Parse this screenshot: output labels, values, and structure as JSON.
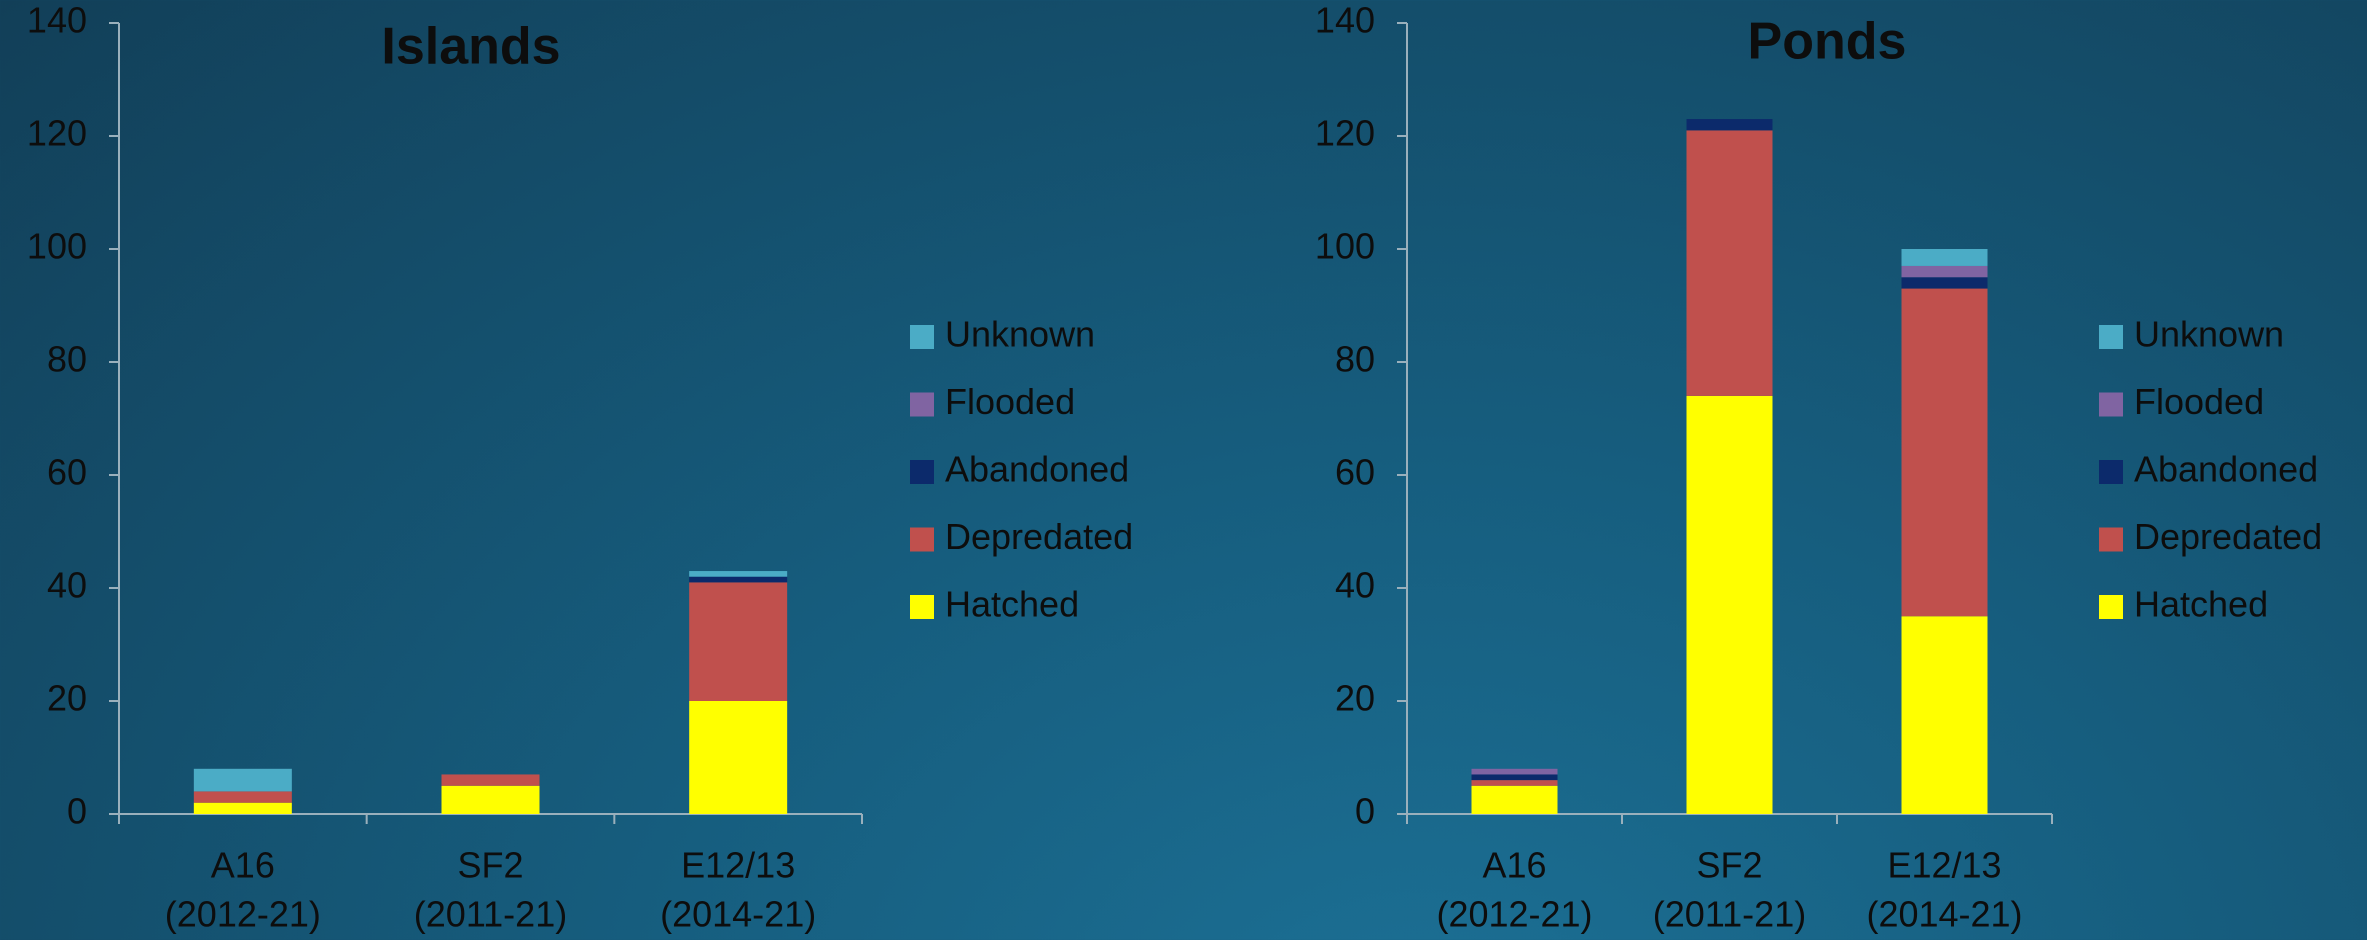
{
  "chart_data": [
    {
      "type": "bar",
      "title": "Islands",
      "categories": [
        [
          "A16",
          "(2012-21)"
        ],
        [
          "SF2",
          "(2011-21)"
        ],
        [
          "E12/13",
          "(2014-21)"
        ]
      ],
      "series": [
        {
          "name": "Hatched",
          "color": "#ffff00",
          "values": [
            2,
            5,
            20
          ]
        },
        {
          "name": "Depredated",
          "color": "#c0504d",
          "values": [
            2,
            2,
            21
          ]
        },
        {
          "name": "Abandoned",
          "color": "#0c2a6b",
          "values": [
            0,
            0,
            1
          ]
        },
        {
          "name": "Flooded",
          "color": "#8064a2",
          "values": [
            0,
            0,
            0
          ]
        },
        {
          "name": "Unknown",
          "color": "#4bacc6",
          "values": [
            4,
            0,
            1
          ]
        }
      ],
      "ylim": [
        0,
        140
      ],
      "yticks": [
        0,
        20,
        40,
        60,
        80,
        100,
        120,
        140
      ],
      "stacked": true
    },
    {
      "type": "bar",
      "title": "Ponds",
      "categories": [
        [
          "A16",
          "(2012-21)"
        ],
        [
          "SF2",
          "(2011-21)"
        ],
        [
          "E12/13",
          "(2014-21)"
        ]
      ],
      "series": [
        {
          "name": "Hatched",
          "color": "#ffff00",
          "values": [
            5,
            74,
            35
          ]
        },
        {
          "name": "Depredated",
          "color": "#c0504d",
          "values": [
            1,
            47,
            58
          ]
        },
        {
          "name": "Abandoned",
          "color": "#0c2a6b",
          "values": [
            1,
            2,
            2
          ]
        },
        {
          "name": "Flooded",
          "color": "#8064a2",
          "values": [
            1,
            0,
            2
          ]
        },
        {
          "name": "Unknown",
          "color": "#4bacc6",
          "values": [
            0,
            0,
            3
          ]
        }
      ],
      "ylim": [
        0,
        140
      ],
      "yticks": [
        0,
        20,
        40,
        60,
        80,
        100,
        120,
        140
      ],
      "stacked": true
    }
  ]
}
